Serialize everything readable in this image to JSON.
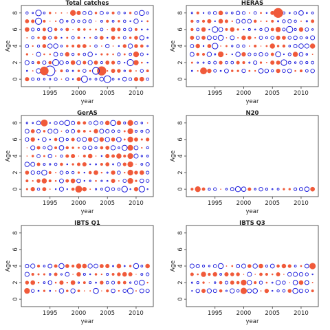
{
  "colors": {
    "positive": "#f05a3a",
    "negative": "#1a1adb",
    "axis": "#333333"
  },
  "chart_data": [
    {
      "type": "scatter",
      "title": "Total catches",
      "xlabel": "year",
      "ylabel": "Age",
      "xlim": [
        1990,
        2013
      ],
      "ylim": [
        -0.9,
        8.9
      ],
      "xticks": [
        1995,
        2000,
        2005,
        2010
      ],
      "yticks": [
        0,
        2,
        4,
        6,
        8
      ],
      "ages": [
        0,
        1,
        2,
        3,
        4,
        5,
        6,
        7,
        8
      ],
      "bubbles": [
        [
          1995,
          1,
          0.85,
          "neg"
        ],
        [
          1994,
          1,
          0.75,
          "pos"
        ],
        [
          1996,
          2,
          0.55,
          "neg"
        ],
        [
          1999,
          8,
          0.5,
          "pos"
        ],
        [
          1993,
          8,
          0.5,
          "neg"
        ],
        [
          1993,
          7,
          0.55,
          "neg"
        ],
        [
          2001,
          0,
          0.55,
          "neg"
        ],
        [
          2004,
          1,
          0.8,
          "pos"
        ],
        [
          2003,
          1,
          0.6,
          "neg"
        ],
        [
          2009,
          2,
          0.55,
          "neg"
        ],
        [
          2010,
          3,
          0.5,
          "pos"
        ],
        [
          2005,
          0,
          0.6,
          "neg"
        ],
        [
          2010,
          2,
          0.45,
          "pos"
        ],
        [
          1991,
          6,
          0.4,
          "pos"
        ],
        [
          1995,
          6,
          0.35,
          "neg"
        ],
        [
          2006,
          5,
          0.35,
          "pos"
        ],
        [
          2011,
          8,
          0.45,
          "neg"
        ],
        [
          1991,
          7,
          0.35,
          "pos"
        ],
        [
          2011,
          0,
          0.4,
          "pos"
        ]
      ]
    },
    {
      "type": "scatter",
      "title": "HERAS",
      "xlabel": "year",
      "ylabel": "Age",
      "xlim": [
        1990,
        2013
      ],
      "ylim": [
        -0.9,
        8.9
      ],
      "xticks": [
        1995,
        2000,
        2005,
        2010
      ],
      "yticks": [
        0,
        2,
        4,
        6,
        8
      ],
      "ages": [
        1,
        2,
        3,
        4,
        5,
        6,
        7,
        8
      ],
      "bubbles": [
        [
          2006,
          8,
          0.85,
          "pos"
        ],
        [
          1993,
          1,
          0.6,
          "pos"
        ],
        [
          2008,
          6,
          0.55,
          "neg"
        ],
        [
          1995,
          6,
          0.5,
          "neg"
        ],
        [
          1996,
          3,
          0.5,
          "pos"
        ],
        [
          2006,
          6,
          0.45,
          "pos"
        ],
        [
          1995,
          4,
          0.5,
          "neg"
        ],
        [
          1996,
          5,
          0.45,
          "neg"
        ],
        [
          2007,
          2,
          0.5,
          "neg"
        ],
        [
          2009,
          3,
          0.45,
          "pos"
        ],
        [
          2012,
          4,
          0.45,
          "pos"
        ],
        [
          2006,
          3,
          0.45,
          "neg"
        ],
        [
          2003,
          1,
          0.4,
          "neg"
        ],
        [
          1996,
          7,
          0.4,
          "pos"
        ],
        [
          2005,
          4,
          0.45,
          "pos"
        ],
        [
          2010,
          8,
          0.4,
          "neg"
        ]
      ]
    },
    {
      "type": "scatter",
      "title": "GerAS",
      "xlabel": "year",
      "ylabel": "Age",
      "xlim": [
        1990,
        2013
      ],
      "ylim": [
        -0.9,
        8.9
      ],
      "xticks": [
        1995,
        2000,
        2005,
        2010
      ],
      "yticks": [
        0,
        2,
        4,
        6,
        8
      ],
      "ages": [
        0,
        1,
        2,
        3,
        4,
        5,
        6,
        7,
        8
      ],
      "bubbles": [
        [
          1994,
          8,
          0.6,
          "pos"
        ],
        [
          2000,
          0,
          0.6,
          "pos"
        ],
        [
          2009,
          8,
          0.5,
          "pos"
        ],
        [
          2009,
          6,
          0.5,
          "pos"
        ],
        [
          2009,
          5,
          0.5,
          "pos"
        ],
        [
          2009,
          4,
          0.5,
          "pos"
        ],
        [
          2009,
          3,
          0.5,
          "pos"
        ],
        [
          2009,
          2,
          0.5,
          "pos"
        ],
        [
          2009,
          1,
          0.5,
          "pos"
        ],
        [
          2009,
          7,
          0.5,
          "pos"
        ],
        [
          2008,
          0,
          0.5,
          "neg"
        ],
        [
          2011,
          0,
          0.5,
          "neg"
        ],
        [
          2008,
          5,
          0.45,
          "neg"
        ],
        [
          1998,
          8,
          0.45,
          "neg"
        ],
        [
          2006,
          8,
          0.45,
          "neg"
        ],
        [
          1994,
          2,
          0.45,
          "neg"
        ],
        [
          1994,
          1,
          0.45,
          "pos"
        ],
        [
          2007,
          4,
          0.45,
          "pos"
        ],
        [
          1997,
          5,
          0.4,
          "neg"
        ],
        [
          2003,
          2,
          0.4,
          "pos"
        ],
        [
          2007,
          6,
          0.4,
          "neg"
        ],
        [
          1999,
          1,
          0.4,
          "pos"
        ]
      ]
    },
    {
      "type": "scatter",
      "title": "N20",
      "xlabel": "year",
      "ylabel": "Age",
      "xlim": [
        1990,
        2013
      ],
      "ylim": [
        -0.9,
        8.9
      ],
      "xticks": [
        1995,
        2000,
        2005,
        2010
      ],
      "yticks": [
        0,
        2,
        4,
        6,
        8
      ],
      "ages": [
        0
      ],
      "bubbles": [
        [
          1992,
          0,
          0.5,
          "pos"
        ],
        [
          1999,
          0,
          0.45,
          "neg"
        ],
        [
          2000,
          0,
          0.4,
          "neg"
        ],
        [
          2011,
          0,
          0.4,
          "neg"
        ],
        [
          2012,
          0,
          0.4,
          "pos"
        ],
        [
          1998,
          0,
          0.3,
          "neg"
        ],
        [
          2010,
          0,
          0.3,
          "neg"
        ],
        [
          1993,
          0,
          0.3,
          "pos"
        ],
        [
          1991,
          0,
          0.25,
          "pos"
        ],
        [
          1994,
          0,
          0.2,
          "neg"
        ],
        [
          2004,
          0,
          0.2,
          "neg"
        ],
        [
          2008,
          0,
          0.2,
          "pos"
        ],
        [
          2009,
          0,
          0.25,
          "neg"
        ],
        [
          2007,
          0,
          0.2,
          "pos"
        ],
        [
          1997,
          0,
          0.15,
          "neg"
        ],
        [
          2002,
          0,
          0.15,
          "neg"
        ],
        [
          1996,
          0,
          0.1,
          "pos"
        ],
        [
          2005,
          0,
          0.1,
          "neg"
        ]
      ]
    },
    {
      "type": "scatter",
      "title": "IBTS Q1",
      "xlabel": "year",
      "ylabel": "Age",
      "xlim": [
        1990,
        2013
      ],
      "ylim": [
        -0.9,
        8.9
      ],
      "xticks": [
        1995,
        2000,
        2005,
        2010
      ],
      "yticks": [
        0,
        2,
        4,
        6,
        8
      ],
      "ages": [
        1,
        2,
        3,
        4
      ],
      "bubbles": [
        [
          1991,
          1,
          0.5,
          "pos"
        ],
        [
          2009,
          1,
          0.5,
          "neg"
        ],
        [
          1997,
          4,
          0.45,
          "neg"
        ],
        [
          2011,
          2,
          0.45,
          "neg"
        ],
        [
          2010,
          4,
          0.45,
          "neg"
        ],
        [
          2000,
          4,
          0.45,
          "pos"
        ],
        [
          2003,
          1,
          0.45,
          "neg"
        ],
        [
          2001,
          4,
          0.4,
          "pos"
        ],
        [
          2007,
          4,
          0.4,
          "pos"
        ],
        [
          2008,
          3,
          0.4,
          "pos"
        ],
        [
          1999,
          2,
          0.4,
          "pos"
        ],
        [
          1992,
          2,
          0.4,
          "pos"
        ],
        [
          2004,
          4,
          0.35,
          "pos"
        ],
        [
          1995,
          4,
          0.35,
          "neg"
        ]
      ]
    },
    {
      "type": "scatter",
      "title": "IBTS Q3",
      "xlabel": "year",
      "ylabel": "Age",
      "xlim": [
        1990,
        2013
      ],
      "ylim": [
        -0.9,
        8.9
      ],
      "xticks": [
        1995,
        2000,
        2005,
        2010
      ],
      "yticks": [
        0,
        2,
        4,
        6,
        8
      ],
      "ages": [
        1,
        2,
        3,
        4
      ],
      "bubbles": [
        [
          2000,
          1,
          0.55,
          "pos"
        ],
        [
          2000,
          2,
          0.5,
          "pos"
        ],
        [
          2012,
          4,
          0.55,
          "pos"
        ],
        [
          1993,
          3,
          0.45,
          "pos"
        ],
        [
          1996,
          4,
          0.45,
          "neg"
        ],
        [
          2009,
          2,
          0.4,
          "neg"
        ],
        [
          2009,
          1,
          0.45,
          "neg"
        ],
        [
          2011,
          4,
          0.35,
          "neg"
        ],
        [
          2002,
          1,
          0.4,
          "neg"
        ],
        [
          2005,
          4,
          0.35,
          "neg"
        ],
        [
          2011,
          2,
          0.35,
          "neg"
        ],
        [
          1992,
          4,
          0.3,
          "neg"
        ],
        [
          1999,
          4,
          0.3,
          "neg"
        ]
      ]
    }
  ]
}
